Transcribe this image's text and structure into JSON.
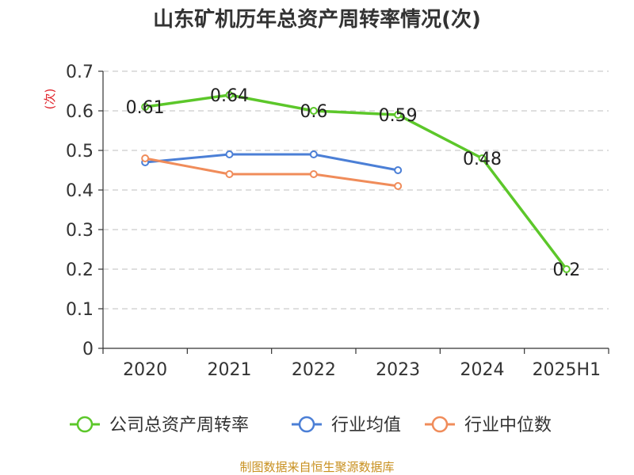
{
  "chart_data": {
    "type": "line",
    "title": "山东矿机历年总资产周转率情况(次)",
    "ylabel": "(次)",
    "xlabel": "",
    "categories": [
      "2020",
      "2021",
      "2022",
      "2023",
      "2024",
      "2025H1"
    ],
    "ylim": [
      0,
      0.7
    ],
    "yticks": [
      "0",
      "0.1",
      "0.2",
      "0.3",
      "0.4",
      "0.5",
      "0.6",
      "0.7"
    ],
    "grid": true,
    "legend_position": "bottom",
    "series": [
      {
        "name": "公司总资产周转率",
        "color": "#5cc72a",
        "values": [
          0.61,
          0.64,
          0.6,
          0.59,
          0.48,
          0.2
        ],
        "labels": [
          "0.61",
          "0.64",
          "0.6",
          "0.59",
          "0.48",
          "0.2"
        ]
      },
      {
        "name": "行业均值",
        "color": "#4b7fd6",
        "values": [
          0.47,
          0.49,
          0.49,
          0.45,
          null,
          null
        ]
      },
      {
        "name": "行业中位数",
        "color": "#f08c5a",
        "values": [
          0.48,
          0.44,
          0.44,
          0.41,
          null,
          null
        ]
      }
    ]
  },
  "footer": {
    "source": "制图数据来自恒生聚源数据库"
  }
}
